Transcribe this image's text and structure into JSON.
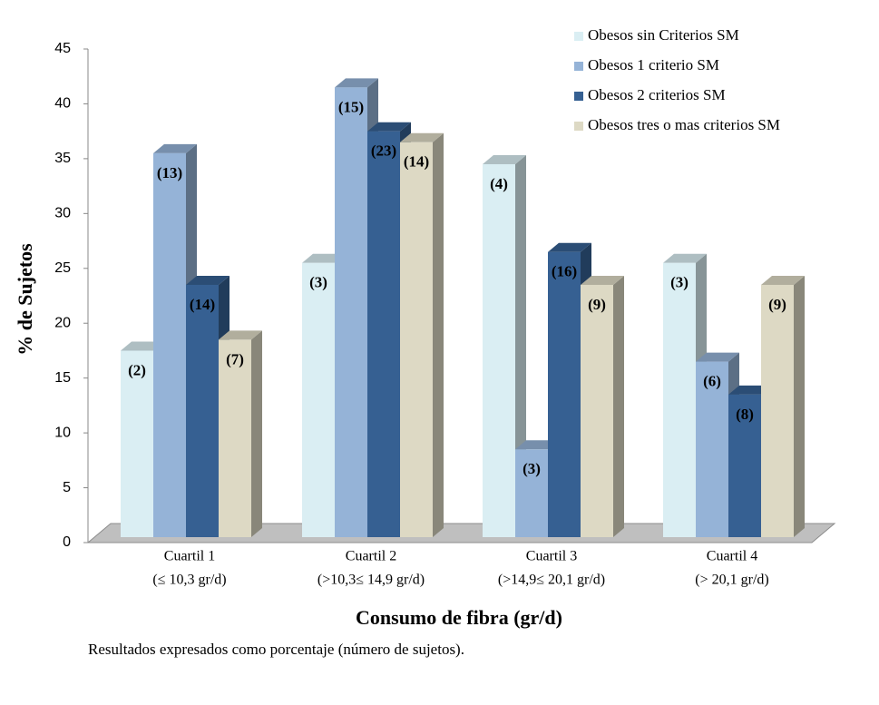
{
  "chart_data": {
    "type": "bar3d",
    "y_label": "% de Sujetos",
    "x_label": "Consumo de fibra (gr/d)",
    "note": "Resultados expresados como porcentaje (número de sujetos).",
    "categories": [
      "Cuartil  1",
      "Cuartil  2",
      "Cuartil  3",
      "Cuartil  4"
    ],
    "category_subtitles": [
      "(≤ 10,3 gr/d)",
      "(>10,3≤ 14,9 gr/d)",
      "(>14,9≤ 20,1 gr/d)",
      "(> 20,1 gr/d)"
    ],
    "ylim": [
      0,
      45
    ],
    "yticks": [
      0,
      5,
      10,
      15,
      20,
      25,
      30,
      35,
      40,
      45
    ],
    "legend": "top-right",
    "series": [
      {
        "name": "Obesos sin Criterios SM",
        "color": "#daeef3",
        "values": [
          17,
          25,
          34,
          25
        ],
        "subject_counts": [
          "(2)",
          "(3)",
          "(4)",
          "(3)"
        ]
      },
      {
        "name": "Obesos 1 criterio SM",
        "color": "#95b3d7",
        "values": [
          35,
          41,
          8,
          16
        ],
        "subject_counts": [
          "(13)",
          "(15)",
          "(3)",
          "(6)"
        ]
      },
      {
        "name": "Obesos 2 criterios SM",
        "color": "#366092",
        "values": [
          23,
          37,
          26,
          13
        ],
        "subject_counts": [
          "(14)",
          "(23)",
          "(16)",
          "(8)"
        ]
      },
      {
        "name": "Obesos tres o mas criterios SM",
        "color": "#ddd9c4",
        "values": [
          18,
          36,
          23,
          23
        ],
        "subject_counts": [
          "(7)",
          "(14)",
          "(9)",
          "(9)"
        ]
      }
    ]
  }
}
